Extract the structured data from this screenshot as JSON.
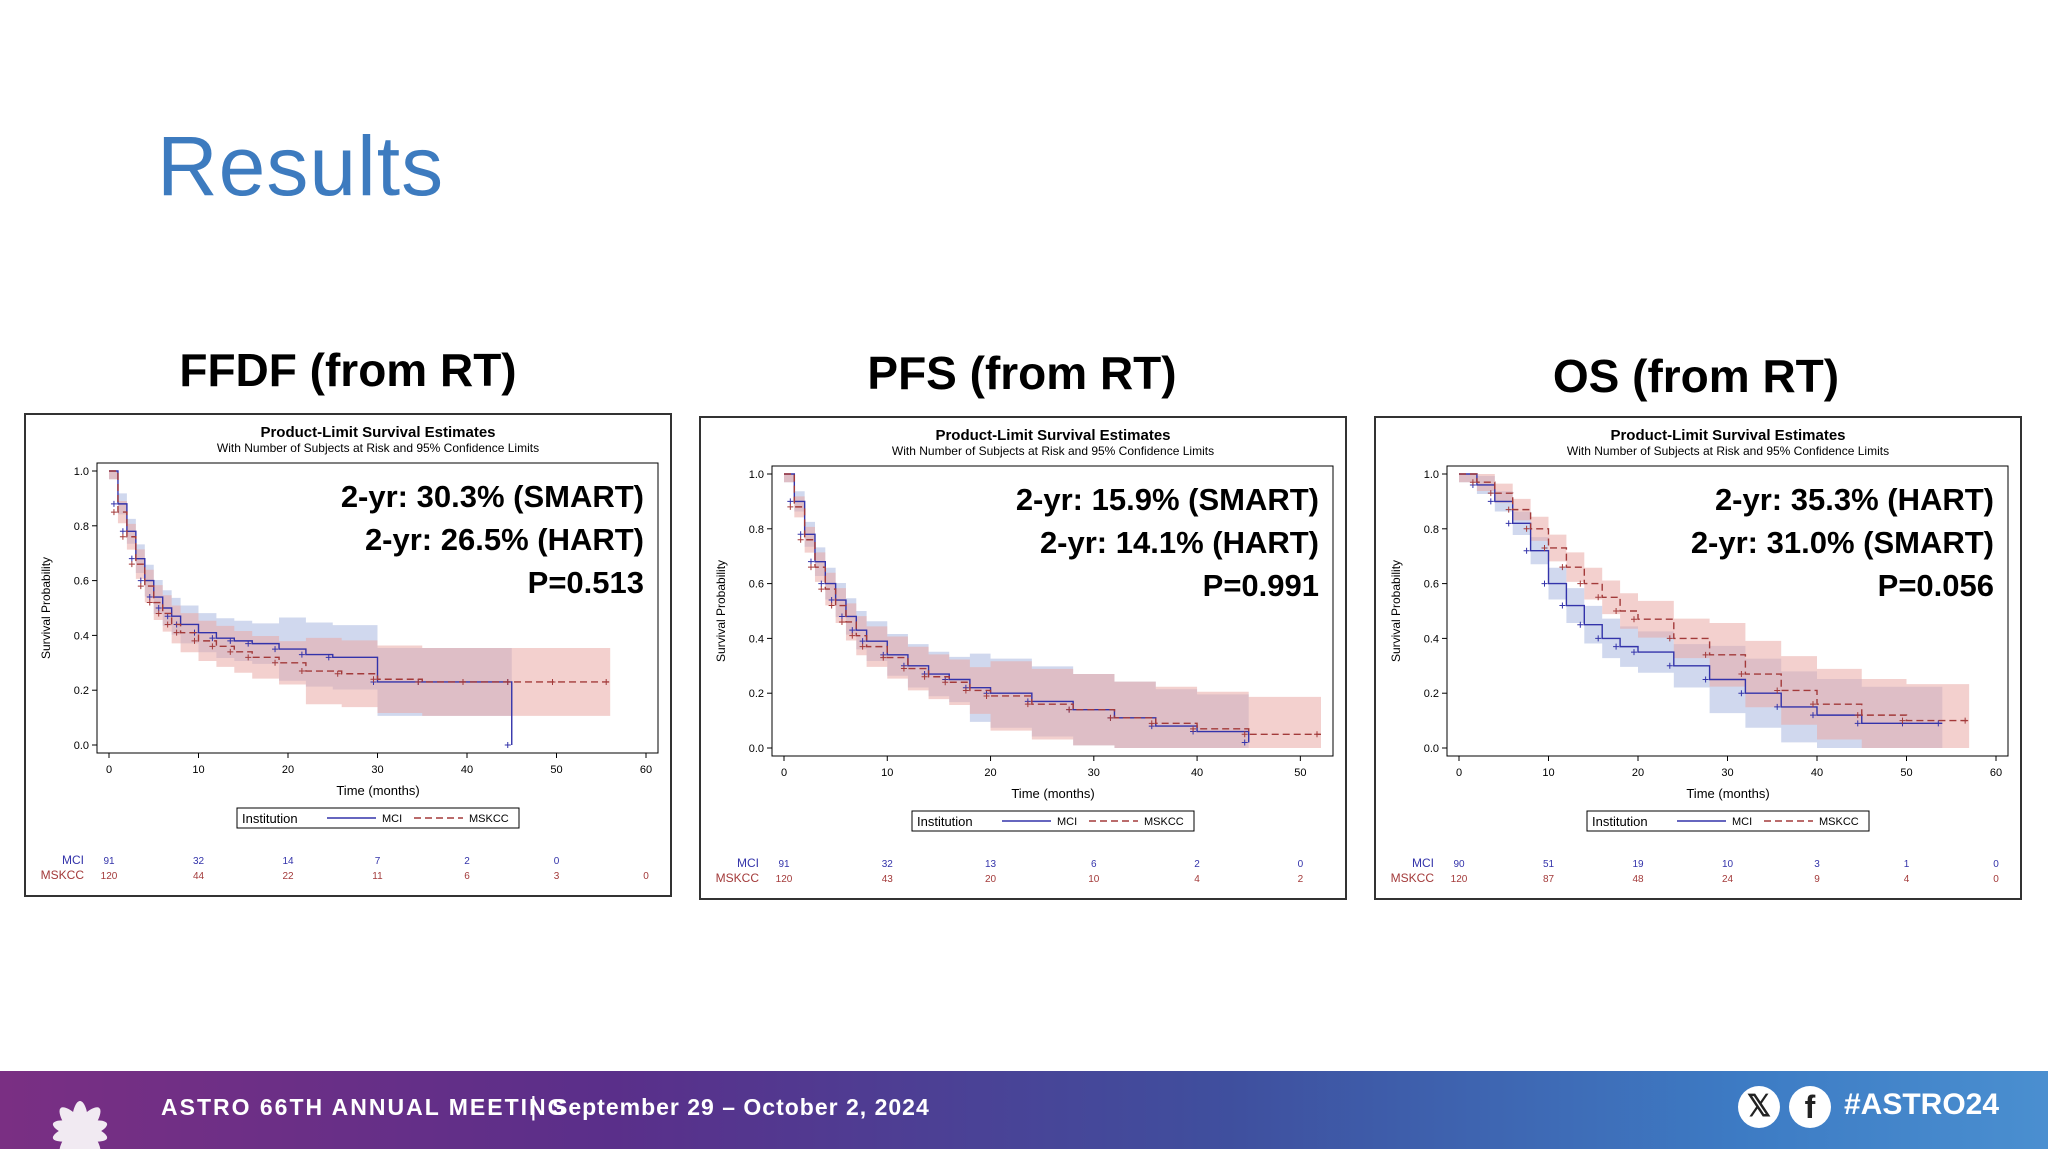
{
  "slide": {
    "title": "Results"
  },
  "footer": {
    "meeting": "ASTRO 66TH ANNUAL MEETING",
    "separator": "|",
    "dates": "September 29 – October 2, 2024",
    "hashtag": "#ASTRO24",
    "icons": [
      "x-icon",
      "facebook-icon",
      "astro-flower-logo-icon"
    ]
  },
  "colors": {
    "title": "#3d7bbf",
    "mci": "#3333aa",
    "mskcc": "#a33a3a",
    "mci_band": "#a9b8e0",
    "mskcc_band": "#e9a9a6"
  },
  "chart_data": [
    {
      "type": "line",
      "heading": "FFDF (from RT)",
      "title": "Product-Limit Survival Estimates",
      "subtitle": "With Number of Subjects at Risk and 95% Confidence Limits",
      "xlabel": "Time (months)",
      "ylabel": "Survival Probability",
      "xlim": [
        0,
        60
      ],
      "ylim": [
        0,
        1
      ],
      "xticks": [
        "0",
        "10",
        "20",
        "30",
        "40",
        "50",
        "60"
      ],
      "yticks": [
        "0.0",
        "0.2",
        "0.4",
        "0.6",
        "0.8",
        "1.0"
      ],
      "annotations": [
        "2-yr: 30.3% (SMART)",
        "2-yr: 26.5% (HART)",
        "P=0.513"
      ],
      "legend": {
        "title": "Institution",
        "position": "bottom"
      },
      "series": [
        {
          "name": "MCI",
          "x": [
            0,
            1,
            2,
            3,
            4,
            5,
            6,
            7,
            8,
            10,
            12,
            14,
            16,
            19,
            22,
            25,
            30,
            35,
            40,
            45,
            45
          ],
          "values": [
            1.0,
            0.88,
            0.78,
            0.68,
            0.6,
            0.54,
            0.5,
            0.47,
            0.44,
            0.41,
            0.39,
            0.38,
            0.37,
            0.35,
            0.33,
            0.32,
            0.23,
            0.23,
            0.23,
            0.23,
            0.0
          ]
        },
        {
          "name": "MSKCC",
          "x": [
            0,
            1,
            2,
            3,
            4,
            5,
            6,
            7,
            8,
            10,
            12,
            14,
            16,
            19,
            22,
            26,
            30,
            35,
            40,
            45,
            50,
            56
          ],
          "values": [
            1.0,
            0.85,
            0.76,
            0.66,
            0.58,
            0.52,
            0.48,
            0.44,
            0.41,
            0.38,
            0.36,
            0.34,
            0.32,
            0.3,
            0.27,
            0.26,
            0.24,
            0.23,
            0.23,
            0.23,
            0.23,
            0.23
          ]
        }
      ],
      "at_risk": {
        "times": [
          0,
          10,
          20,
          30,
          40,
          50,
          60
        ],
        "rows": [
          {
            "name": "MCI",
            "values": [
              "91",
              "32",
              "14",
              "7",
              "2",
              "0",
              ""
            ]
          },
          {
            "name": "MSKCC",
            "values": [
              "120",
              "44",
              "22",
              "11",
              "6",
              "3",
              "0"
            ]
          }
        ]
      }
    },
    {
      "type": "line",
      "heading": "PFS (from RT)",
      "title": "Product-Limit Survival Estimates",
      "subtitle": "With Number of Subjects at Risk and 95% Confidence Limits",
      "xlabel": "Time (months)",
      "ylabel": "Survival Probability",
      "xlim": [
        0,
        52
      ],
      "ylim": [
        0,
        1
      ],
      "xticks": [
        "0",
        "10",
        "20",
        "30",
        "40",
        "50"
      ],
      "yticks": [
        "0.0",
        "0.2",
        "0.4",
        "0.6",
        "0.8",
        "1.0"
      ],
      "annotations": [
        "2-yr: 15.9% (SMART)",
        "2-yr: 14.1% (HART)",
        "P=0.991"
      ],
      "legend": {
        "title": "Institution",
        "position": "bottom"
      },
      "series": [
        {
          "name": "MCI",
          "x": [
            0,
            1,
            2,
            3,
            4,
            5,
            6,
            7,
            8,
            10,
            12,
            14,
            16,
            18,
            20,
            24,
            28,
            32,
            36,
            40,
            45
          ],
          "values": [
            1.0,
            0.9,
            0.78,
            0.68,
            0.6,
            0.54,
            0.48,
            0.43,
            0.39,
            0.34,
            0.3,
            0.27,
            0.25,
            0.22,
            0.2,
            0.17,
            0.14,
            0.11,
            0.08,
            0.06,
            0.02
          ]
        },
        {
          "name": "MSKCC",
          "x": [
            0,
            1,
            2,
            3,
            4,
            5,
            6,
            7,
            8,
            10,
            12,
            14,
            16,
            18,
            20,
            24,
            28,
            32,
            36,
            40,
            45,
            52
          ],
          "values": [
            1.0,
            0.88,
            0.76,
            0.66,
            0.58,
            0.52,
            0.46,
            0.41,
            0.37,
            0.33,
            0.29,
            0.26,
            0.24,
            0.21,
            0.19,
            0.16,
            0.14,
            0.11,
            0.09,
            0.07,
            0.05,
            0.05
          ]
        }
      ],
      "at_risk": {
        "times": [
          0,
          10,
          20,
          30,
          40,
          50
        ],
        "rows": [
          {
            "name": "MCI",
            "values": [
              "91",
              "32",
              "13",
              "6",
              "2",
              "0"
            ]
          },
          {
            "name": "MSKCC",
            "values": [
              "120",
              "43",
              "20",
              "10",
              "4",
              "2"
            ]
          }
        ]
      }
    },
    {
      "type": "line",
      "heading": "OS (from RT)",
      "title": "Product-Limit Survival Estimates",
      "subtitle": "With Number of Subjects at Risk and 95% Confidence Limits",
      "xlabel": "Time (months)",
      "ylabel": "Survival Probability",
      "xlim": [
        0,
        60
      ],
      "ylim": [
        0,
        1
      ],
      "xticks": [
        "0",
        "10",
        "20",
        "30",
        "40",
        "50",
        "60"
      ],
      "yticks": [
        "0.0",
        "0.2",
        "0.4",
        "0.6",
        "0.8",
        "1.0"
      ],
      "annotations": [
        "2-yr: 35.3% (HART)",
        "2-yr: 31.0% (SMART)",
        "P=0.056"
      ],
      "legend": {
        "title": "Institution",
        "position": "bottom"
      },
      "series": [
        {
          "name": "MCI",
          "x": [
            0,
            2,
            4,
            6,
            8,
            10,
            12,
            14,
            16,
            18,
            20,
            24,
            28,
            32,
            36,
            40,
            45,
            50,
            54
          ],
          "values": [
            1.0,
            0.96,
            0.9,
            0.82,
            0.72,
            0.6,
            0.52,
            0.45,
            0.4,
            0.37,
            0.35,
            0.3,
            0.25,
            0.2,
            0.15,
            0.12,
            0.09,
            0.09,
            0.09
          ]
        },
        {
          "name": "MSKCC",
          "x": [
            0,
            2,
            4,
            6,
            8,
            10,
            12,
            14,
            16,
            18,
            20,
            24,
            28,
            32,
            36,
            40,
            45,
            50,
            57
          ],
          "values": [
            1.0,
            0.97,
            0.93,
            0.87,
            0.8,
            0.73,
            0.66,
            0.6,
            0.55,
            0.5,
            0.47,
            0.4,
            0.34,
            0.27,
            0.21,
            0.16,
            0.12,
            0.1,
            0.1
          ]
        }
      ],
      "at_risk": {
        "times": [
          0,
          10,
          20,
          30,
          40,
          50,
          60
        ],
        "rows": [
          {
            "name": "MCI",
            "values": [
              "90",
              "51",
              "19",
              "10",
              "3",
              "1",
              "0"
            ]
          },
          {
            "name": "MSKCC",
            "values": [
              "120",
              "87",
              "48",
              "24",
              "9",
              "4",
              "0"
            ]
          }
        ]
      }
    }
  ]
}
